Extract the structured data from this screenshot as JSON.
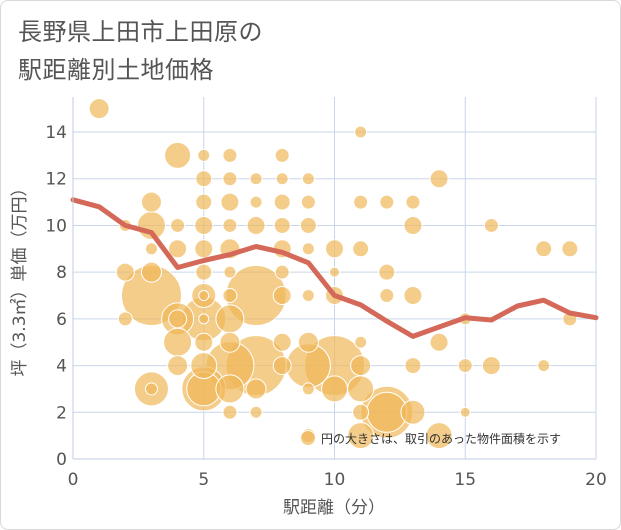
{
  "title_lines": [
    "長野県上田市上田原の",
    "駅距離別土地価格"
  ],
  "chart_data": {
    "type": "scatter",
    "title": "長野県上田市上田原の駅距離別土地価格",
    "xlabel": "駅距離（分）",
    "ylabel": "坪（3.3㎡）単価（万円）",
    "xlim": [
      0,
      20
    ],
    "ylim": [
      0,
      15.5
    ],
    "xticks": [
      0,
      5,
      10,
      15,
      20
    ],
    "yticks": [
      0,
      2,
      4,
      6,
      8,
      10,
      12,
      14
    ],
    "grid": true,
    "bubble_color": "#f0b858",
    "line_color": "#d4695a",
    "note": "円の大きさは、取引のあった物件面積を示す",
    "points": [
      {
        "x": 1,
        "y": 15,
        "s": 1
      },
      {
        "x": 2,
        "y": 10,
        "s": 0.6
      },
      {
        "x": 2,
        "y": 8,
        "s": 0.9
      },
      {
        "x": 2,
        "y": 6,
        "s": 0.7
      },
      {
        "x": 3,
        "y": 11,
        "s": 1
      },
      {
        "x": 3,
        "y": 10,
        "s": 1.4
      },
      {
        "x": 3,
        "y": 9,
        "s": 0.6
      },
      {
        "x": 3,
        "y": 8,
        "s": 1
      },
      {
        "x": 3,
        "y": 7,
        "s": 3
      },
      {
        "x": 3,
        "y": 3,
        "s": 1.7
      },
      {
        "x": 3,
        "y": 3,
        "s": 0.6
      },
      {
        "x": 4,
        "y": 13,
        "s": 1.3
      },
      {
        "x": 4,
        "y": 10,
        "s": 0.7
      },
      {
        "x": 4,
        "y": 9,
        "s": 0.9
      },
      {
        "x": 4,
        "y": 6,
        "s": 1.6
      },
      {
        "x": 4,
        "y": 6,
        "s": 0.9
      },
      {
        "x": 4,
        "y": 5,
        "s": 1.4
      },
      {
        "x": 4,
        "y": 4,
        "s": 1
      },
      {
        "x": 5,
        "y": 13,
        "s": 0.6
      },
      {
        "x": 5,
        "y": 12,
        "s": 0.8
      },
      {
        "x": 5,
        "y": 11,
        "s": 0.8
      },
      {
        "x": 5,
        "y": 10,
        "s": 0.9
      },
      {
        "x": 5,
        "y": 9,
        "s": 0.9
      },
      {
        "x": 5,
        "y": 8,
        "s": 0.8
      },
      {
        "x": 5,
        "y": 7,
        "s": 1.2
      },
      {
        "x": 5,
        "y": 7,
        "s": 0.5
      },
      {
        "x": 5,
        "y": 6,
        "s": 2.2
      },
      {
        "x": 5,
        "y": 6,
        "s": 0.5
      },
      {
        "x": 5,
        "y": 5,
        "s": 0.9
      },
      {
        "x": 5,
        "y": 4,
        "s": 1.3
      },
      {
        "x": 5,
        "y": 3,
        "s": 2.2
      },
      {
        "x": 5,
        "y": 3,
        "s": 1.7
      },
      {
        "x": 6,
        "y": 13,
        "s": 0.7
      },
      {
        "x": 6,
        "y": 12,
        "s": 0.7
      },
      {
        "x": 6,
        "y": 11,
        "s": 0.9
      },
      {
        "x": 6,
        "y": 10,
        "s": 0.7
      },
      {
        "x": 6,
        "y": 9,
        "s": 1
      },
      {
        "x": 6,
        "y": 8,
        "s": 0.6
      },
      {
        "x": 6,
        "y": 7,
        "s": 0.7
      },
      {
        "x": 6,
        "y": 6,
        "s": 1.4
      },
      {
        "x": 6,
        "y": 5,
        "s": 1
      },
      {
        "x": 6,
        "y": 4,
        "s": 2.4
      },
      {
        "x": 6,
        "y": 3,
        "s": 1.4
      },
      {
        "x": 6,
        "y": 2,
        "s": 0.7
      },
      {
        "x": 7,
        "y": 12,
        "s": 0.6
      },
      {
        "x": 7,
        "y": 11,
        "s": 0.6
      },
      {
        "x": 7,
        "y": 10,
        "s": 0.9
      },
      {
        "x": 7,
        "y": 7,
        "s": 3
      },
      {
        "x": 7,
        "y": 4,
        "s": 3
      },
      {
        "x": 7,
        "y": 3,
        "s": 1
      },
      {
        "x": 7,
        "y": 2,
        "s": 0.6
      },
      {
        "x": 8,
        "y": 13,
        "s": 0.7
      },
      {
        "x": 8,
        "y": 12,
        "s": 0.6
      },
      {
        "x": 8,
        "y": 11,
        "s": 0.8
      },
      {
        "x": 8,
        "y": 10,
        "s": 0.8
      },
      {
        "x": 8,
        "y": 9,
        "s": 0.9
      },
      {
        "x": 8,
        "y": 8,
        "s": 0.7
      },
      {
        "x": 8,
        "y": 7,
        "s": 0.9
      },
      {
        "x": 8,
        "y": 5,
        "s": 0.9
      },
      {
        "x": 8,
        "y": 4,
        "s": 0.9
      },
      {
        "x": 9,
        "y": 12,
        "s": 0.6
      },
      {
        "x": 9,
        "y": 11,
        "s": 0.7
      },
      {
        "x": 9,
        "y": 10,
        "s": 0.8
      },
      {
        "x": 9,
        "y": 9,
        "s": 0.6
      },
      {
        "x": 9,
        "y": 7,
        "s": 0.6
      },
      {
        "x": 9,
        "y": 5,
        "s": 1
      },
      {
        "x": 9,
        "y": 4,
        "s": 2.2
      },
      {
        "x": 9,
        "y": 3,
        "s": 0.6
      },
      {
        "x": 9,
        "y": 1,
        "s": 0.7
      },
      {
        "x": 10,
        "y": 9,
        "s": 0.9
      },
      {
        "x": 10,
        "y": 8,
        "s": 0.5
      },
      {
        "x": 10,
        "y": 7,
        "s": 0.9
      },
      {
        "x": 10,
        "y": 4,
        "s": 3
      },
      {
        "x": 10,
        "y": 3,
        "s": 1.3
      },
      {
        "x": 11,
        "y": 14,
        "s": 0.6
      },
      {
        "x": 11,
        "y": 11,
        "s": 0.7
      },
      {
        "x": 11,
        "y": 9,
        "s": 0.8
      },
      {
        "x": 11,
        "y": 5,
        "s": 0.6
      },
      {
        "x": 11,
        "y": 4,
        "s": 1
      },
      {
        "x": 11,
        "y": 3,
        "s": 1.3
      },
      {
        "x": 11,
        "y": 2,
        "s": 0.8
      },
      {
        "x": 11,
        "y": 1,
        "s": 1.3
      },
      {
        "x": 12,
        "y": 11,
        "s": 0.7
      },
      {
        "x": 12,
        "y": 8,
        "s": 0.8
      },
      {
        "x": 12,
        "y": 7,
        "s": 0.7
      },
      {
        "x": 12,
        "y": 2,
        "s": 2.6
      },
      {
        "x": 12,
        "y": 2,
        "s": 2
      },
      {
        "x": 13,
        "y": 11,
        "s": 0.7
      },
      {
        "x": 13,
        "y": 10,
        "s": 0.9
      },
      {
        "x": 13,
        "y": 7,
        "s": 0.9
      },
      {
        "x": 13,
        "y": 4,
        "s": 0.8
      },
      {
        "x": 13,
        "y": 2,
        "s": 1.2
      },
      {
        "x": 14,
        "y": 12,
        "s": 0.9
      },
      {
        "x": 14,
        "y": 5,
        "s": 0.9
      },
      {
        "x": 14,
        "y": 1,
        "s": 1.3
      },
      {
        "x": 15,
        "y": 6,
        "s": 0.6
      },
      {
        "x": 15,
        "y": 4,
        "s": 0.7
      },
      {
        "x": 15,
        "y": 2,
        "s": 0.5
      },
      {
        "x": 16,
        "y": 10,
        "s": 0.7
      },
      {
        "x": 16,
        "y": 4,
        "s": 0.9
      },
      {
        "x": 18,
        "y": 9,
        "s": 0.8
      },
      {
        "x": 18,
        "y": 4,
        "s": 0.6
      },
      {
        "x": 19,
        "y": 9,
        "s": 0.8
      },
      {
        "x": 19,
        "y": 6,
        "s": 0.7
      }
    ],
    "trend": {
      "x": [
        0,
        1,
        2,
        3,
        4,
        5,
        6,
        7,
        8,
        9,
        10,
        11,
        12,
        13,
        14,
        15,
        16,
        17,
        18,
        19,
        20
      ],
      "y": [
        11.1,
        10.8,
        10.0,
        9.7,
        8.2,
        8.5,
        8.75,
        9.1,
        8.85,
        8.4,
        7.0,
        6.6,
        5.9,
        5.25,
        5.65,
        6.05,
        5.95,
        6.55,
        6.8,
        6.25,
        6.05
      ]
    }
  }
}
